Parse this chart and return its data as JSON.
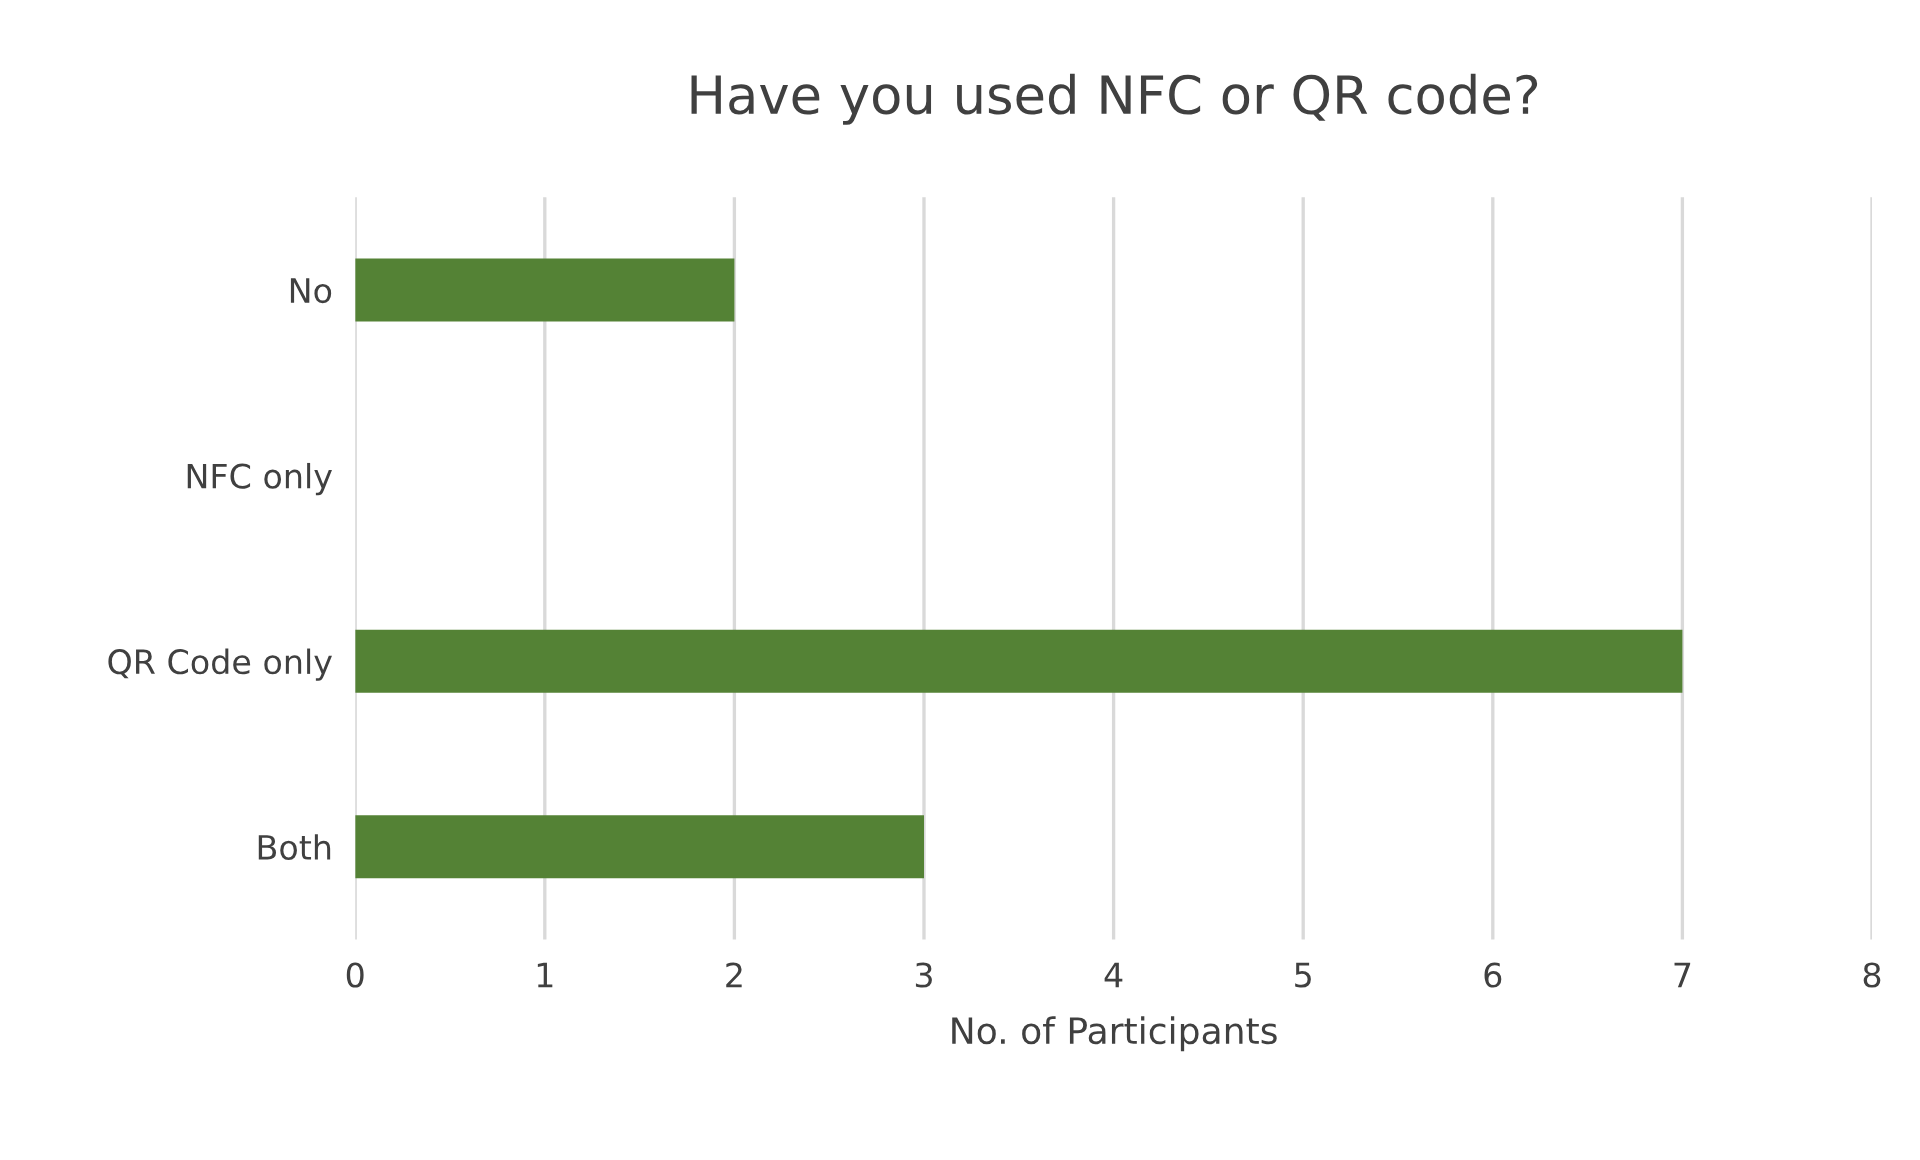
{
  "chart_data": {
    "type": "bar",
    "orientation": "horizontal",
    "title": "Have you used NFC or QR code?",
    "xlabel": "No. of Participants",
    "categories": [
      "No",
      "NFC only",
      "QR Code only",
      "Both"
    ],
    "values": [
      2,
      0,
      7,
      3
    ],
    "color": "#548235",
    "xlim": [
      0,
      8
    ],
    "xticks": [
      0,
      1,
      2,
      3,
      4,
      5,
      6,
      7,
      8
    ],
    "grid": "x",
    "legend": false
  }
}
